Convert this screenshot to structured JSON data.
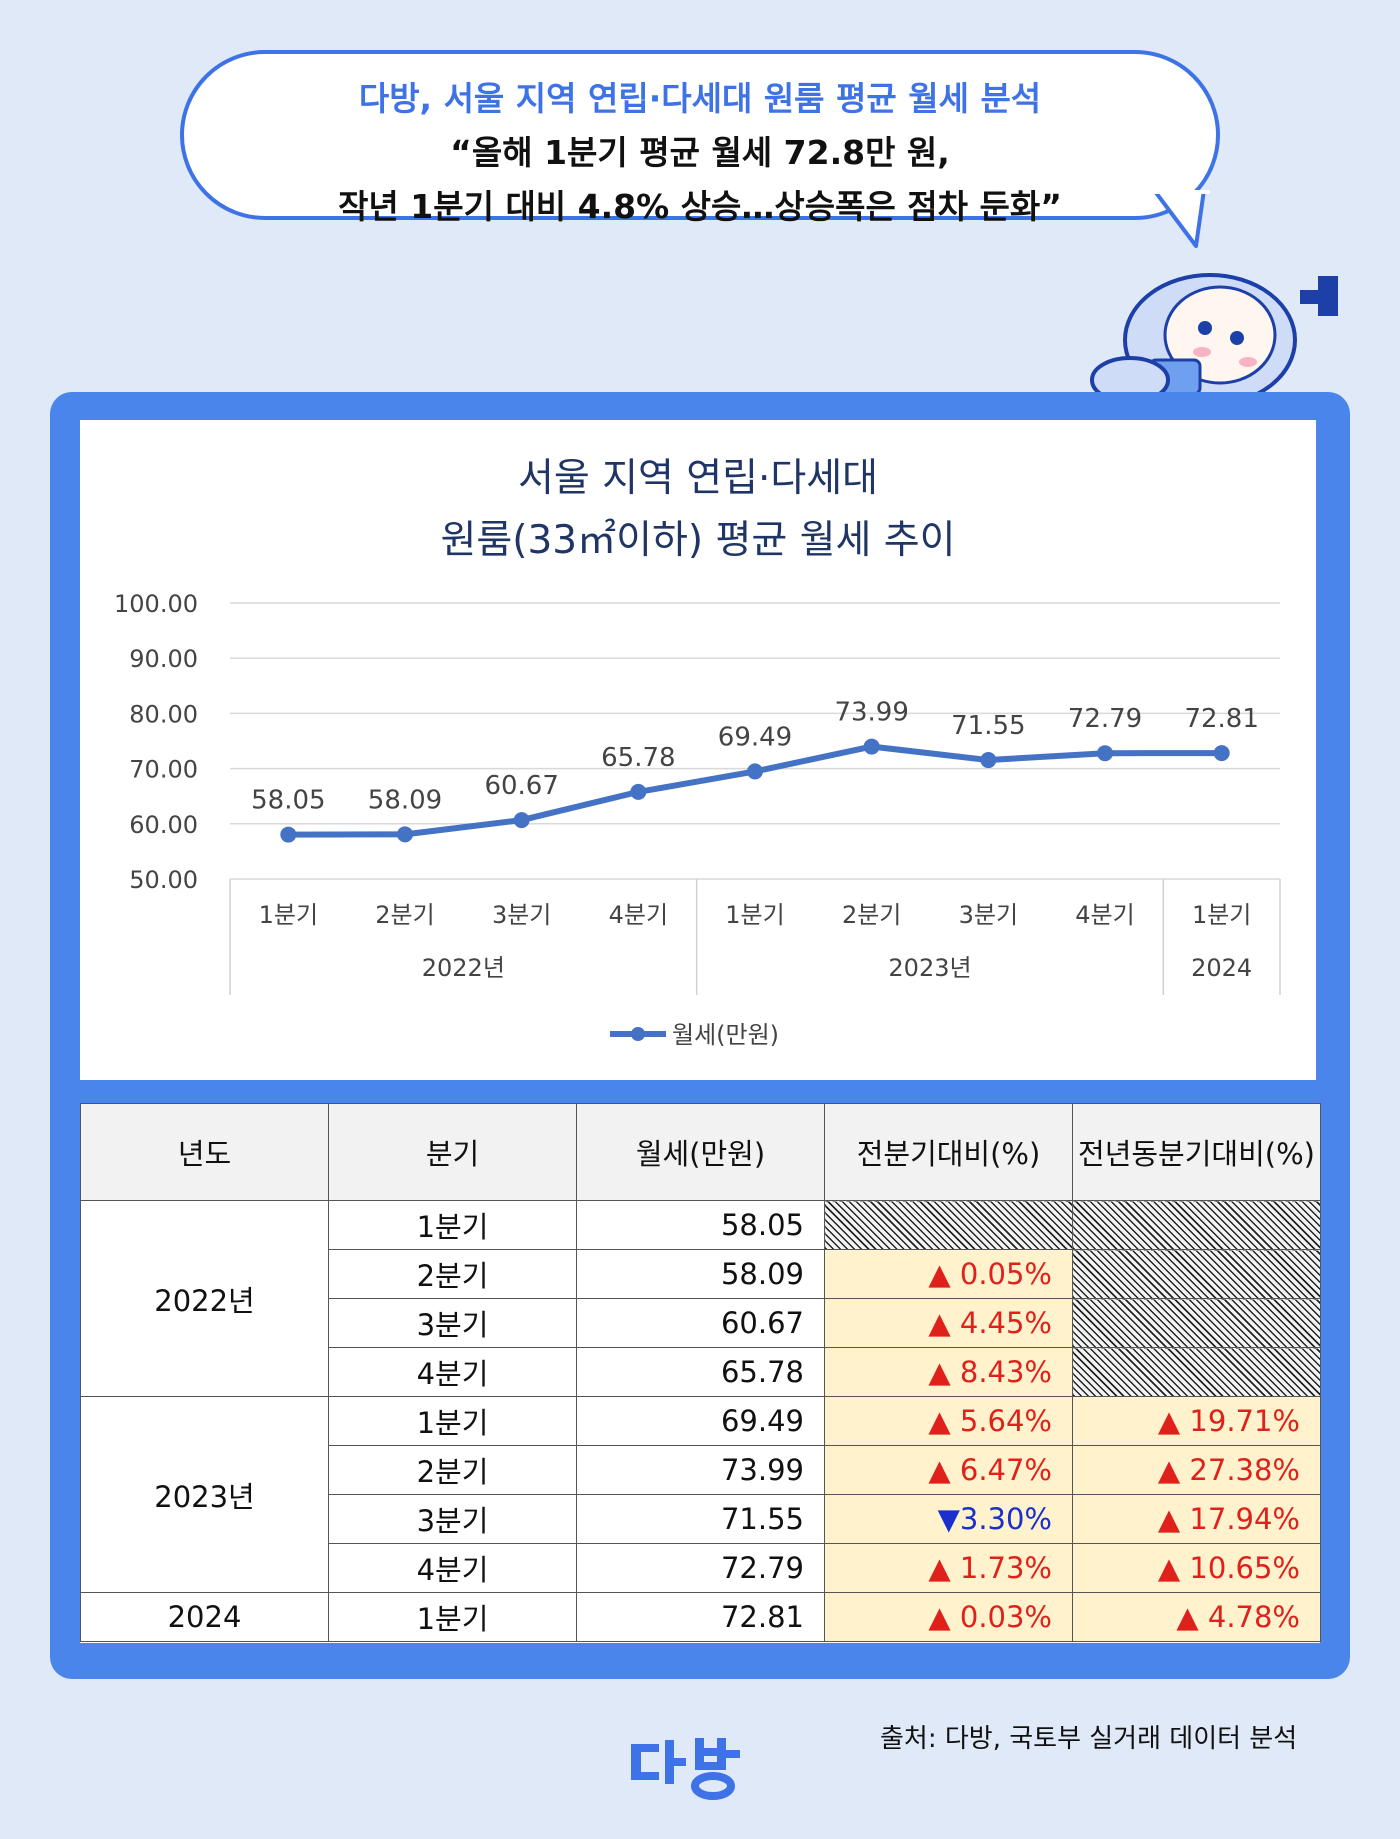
{
  "headline": {
    "line1": "다방, 서울 지역 연립·다세대 원룸 평균 월세 분석",
    "line2": "“올해 1분기 평균 월세 72.8만 원,",
    "line3": "작년 1분기 대비 4.8% 상승…상승폭은 점차 둔화”"
  },
  "chart_data": {
    "type": "line",
    "title_line1": "서울 지역 연립·다세대",
    "title_line2": "원룸(33㎡이하) 평균 월세 추이",
    "categories": [
      "1분기",
      "2분기",
      "3분기",
      "4분기",
      "1분기",
      "2분기",
      "3분기",
      "4분기",
      "1분기"
    ],
    "groups": [
      {
        "label": "2022년",
        "span": 4
      },
      {
        "label": "2023년",
        "span": 4
      },
      {
        "label": "2024",
        "span": 1
      }
    ],
    "series": [
      {
        "name": "월세(만원)",
        "values": [
          58.05,
          58.09,
          60.67,
          65.78,
          69.49,
          73.99,
          71.55,
          72.79,
          72.81
        ]
      }
    ],
    "value_labels": [
      "58.05",
      "58.09",
      "60.67",
      "65.78",
      "69.49",
      "73.99",
      "71.55",
      "72.79",
      "72.81"
    ],
    "y_ticks": [
      "100.00",
      "90.00",
      "80.00",
      "70.00",
      "60.00",
      "50.00"
    ],
    "ylim": [
      50,
      100
    ],
    "grid": true,
    "legend_position": "bottom",
    "line_color": "#4472c4"
  },
  "table": {
    "headers": [
      "년도",
      "분기",
      "월세(만원)",
      "전분기대비(%)",
      "전년동분기대비(%)"
    ],
    "years": [
      "2022년",
      "2023년",
      "2024"
    ],
    "rows": [
      {
        "quarter": "1분기",
        "rent": "58.05",
        "qoq": "",
        "yoy": ""
      },
      {
        "quarter": "2분기",
        "rent": "58.09",
        "qoq": "▲ 0.05%",
        "yoy": ""
      },
      {
        "quarter": "3분기",
        "rent": "60.67",
        "qoq": "▲ 4.45%",
        "yoy": ""
      },
      {
        "quarter": "4분기",
        "rent": "65.78",
        "qoq": "▲ 8.43%",
        "yoy": ""
      },
      {
        "quarter": "1분기",
        "rent": "69.49",
        "qoq": "▲ 5.64%",
        "yoy": "▲ 19.71%"
      },
      {
        "quarter": "2분기",
        "rent": "73.99",
        "qoq": "▲ 6.47%",
        "yoy": "▲ 27.38%"
      },
      {
        "quarter": "3분기",
        "rent": "71.55",
        "qoq": "▼3.30%",
        "yoy": "▲ 17.94%"
      },
      {
        "quarter": "4분기",
        "rent": "72.79",
        "qoq": "▲ 1.73%",
        "yoy": "▲ 10.65%"
      },
      {
        "quarter": "1분기",
        "rent": "72.81",
        "qoq": "▲ 0.03%",
        "yoy": "▲ 4.78%"
      }
    ]
  },
  "source": "출처: 다방, 국토부 실거래 데이터 분석",
  "logo_text": "다방",
  "colors": {
    "brand": "#3d73e6",
    "up": "#e0211b",
    "down": "#1b2fd0",
    "highlight": "#fff2cc"
  }
}
